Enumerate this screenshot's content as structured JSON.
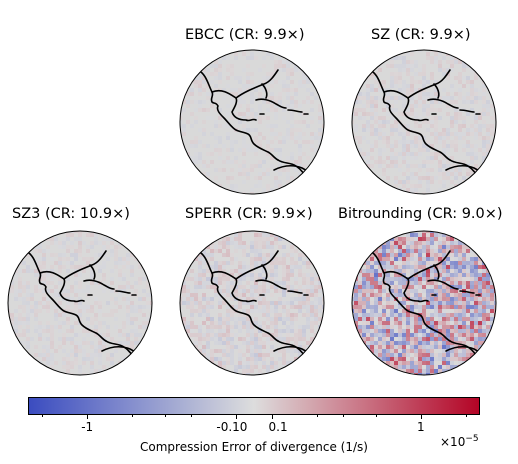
{
  "chart_data": {
    "type": "heatmap",
    "panels": [
      {
        "name": "EBCC",
        "title": "EBCC (CR: 9.9×)",
        "noise": 0.06
      },
      {
        "name": "SZ",
        "title": "SZ (CR: 9.9×)",
        "noise": 0.08
      },
      {
        "name": "SZ3",
        "title": "SZ3 (CR: 10.9×)",
        "noise": 0.07
      },
      {
        "name": "SPERR",
        "title": "SPERR (CR: 9.9×)",
        "noise": 0.12
      },
      {
        "name": "Bitrounding",
        "title": "Bitrounding (CR: 9.0×)",
        "noise": 0.55
      }
    ],
    "colorbar": {
      "label": "Compression Error of divergence (1/s)",
      "scale": "×10",
      "scale_exponent": "−5",
      "vmin": -2.5,
      "vmax": 2.5,
      "ticks": [
        {
          "value": -1,
          "label": "-1"
        },
        {
          "value": -0.1,
          "label": "-0.10"
        },
        {
          "value": 0.1,
          "label": "0.1"
        },
        {
          "value": 1,
          "label": "1"
        }
      ],
      "colormap": "coolwarm",
      "colors": {
        "low": "#3b4cc0",
        "mid": "#dddddd",
        "high": "#b40426"
      }
    },
    "map_fill": "#d9d9d9",
    "coastline_color": "#000000"
  }
}
